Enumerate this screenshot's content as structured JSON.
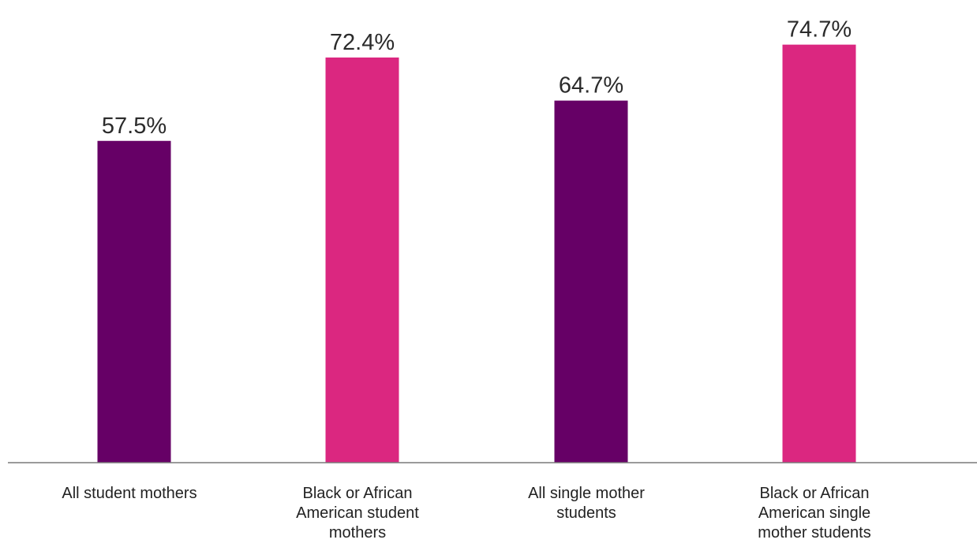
{
  "chart_data": {
    "type": "bar",
    "title": "",
    "xlabel": "",
    "ylabel": "",
    "ylim": [
      0,
      80
    ],
    "grid": false,
    "categories": [
      [
        "All student mothers"
      ],
      [
        "Black or African",
        "American student",
        "mothers"
      ],
      [
        "All single mother",
        "students"
      ],
      [
        "Black or African",
        "American single",
        "mother students"
      ]
    ],
    "values": [
      57.5,
      72.4,
      64.7,
      74.7
    ],
    "data_labels": [
      "57.5%",
      "72.4%",
      "64.7%",
      "74.7%"
    ],
    "bar_colors": [
      "#660066",
      "#db2780",
      "#660066",
      "#db2780"
    ]
  },
  "colors": {
    "axis": "#7a7a7a",
    "label_text": "#2b2b2b"
  }
}
